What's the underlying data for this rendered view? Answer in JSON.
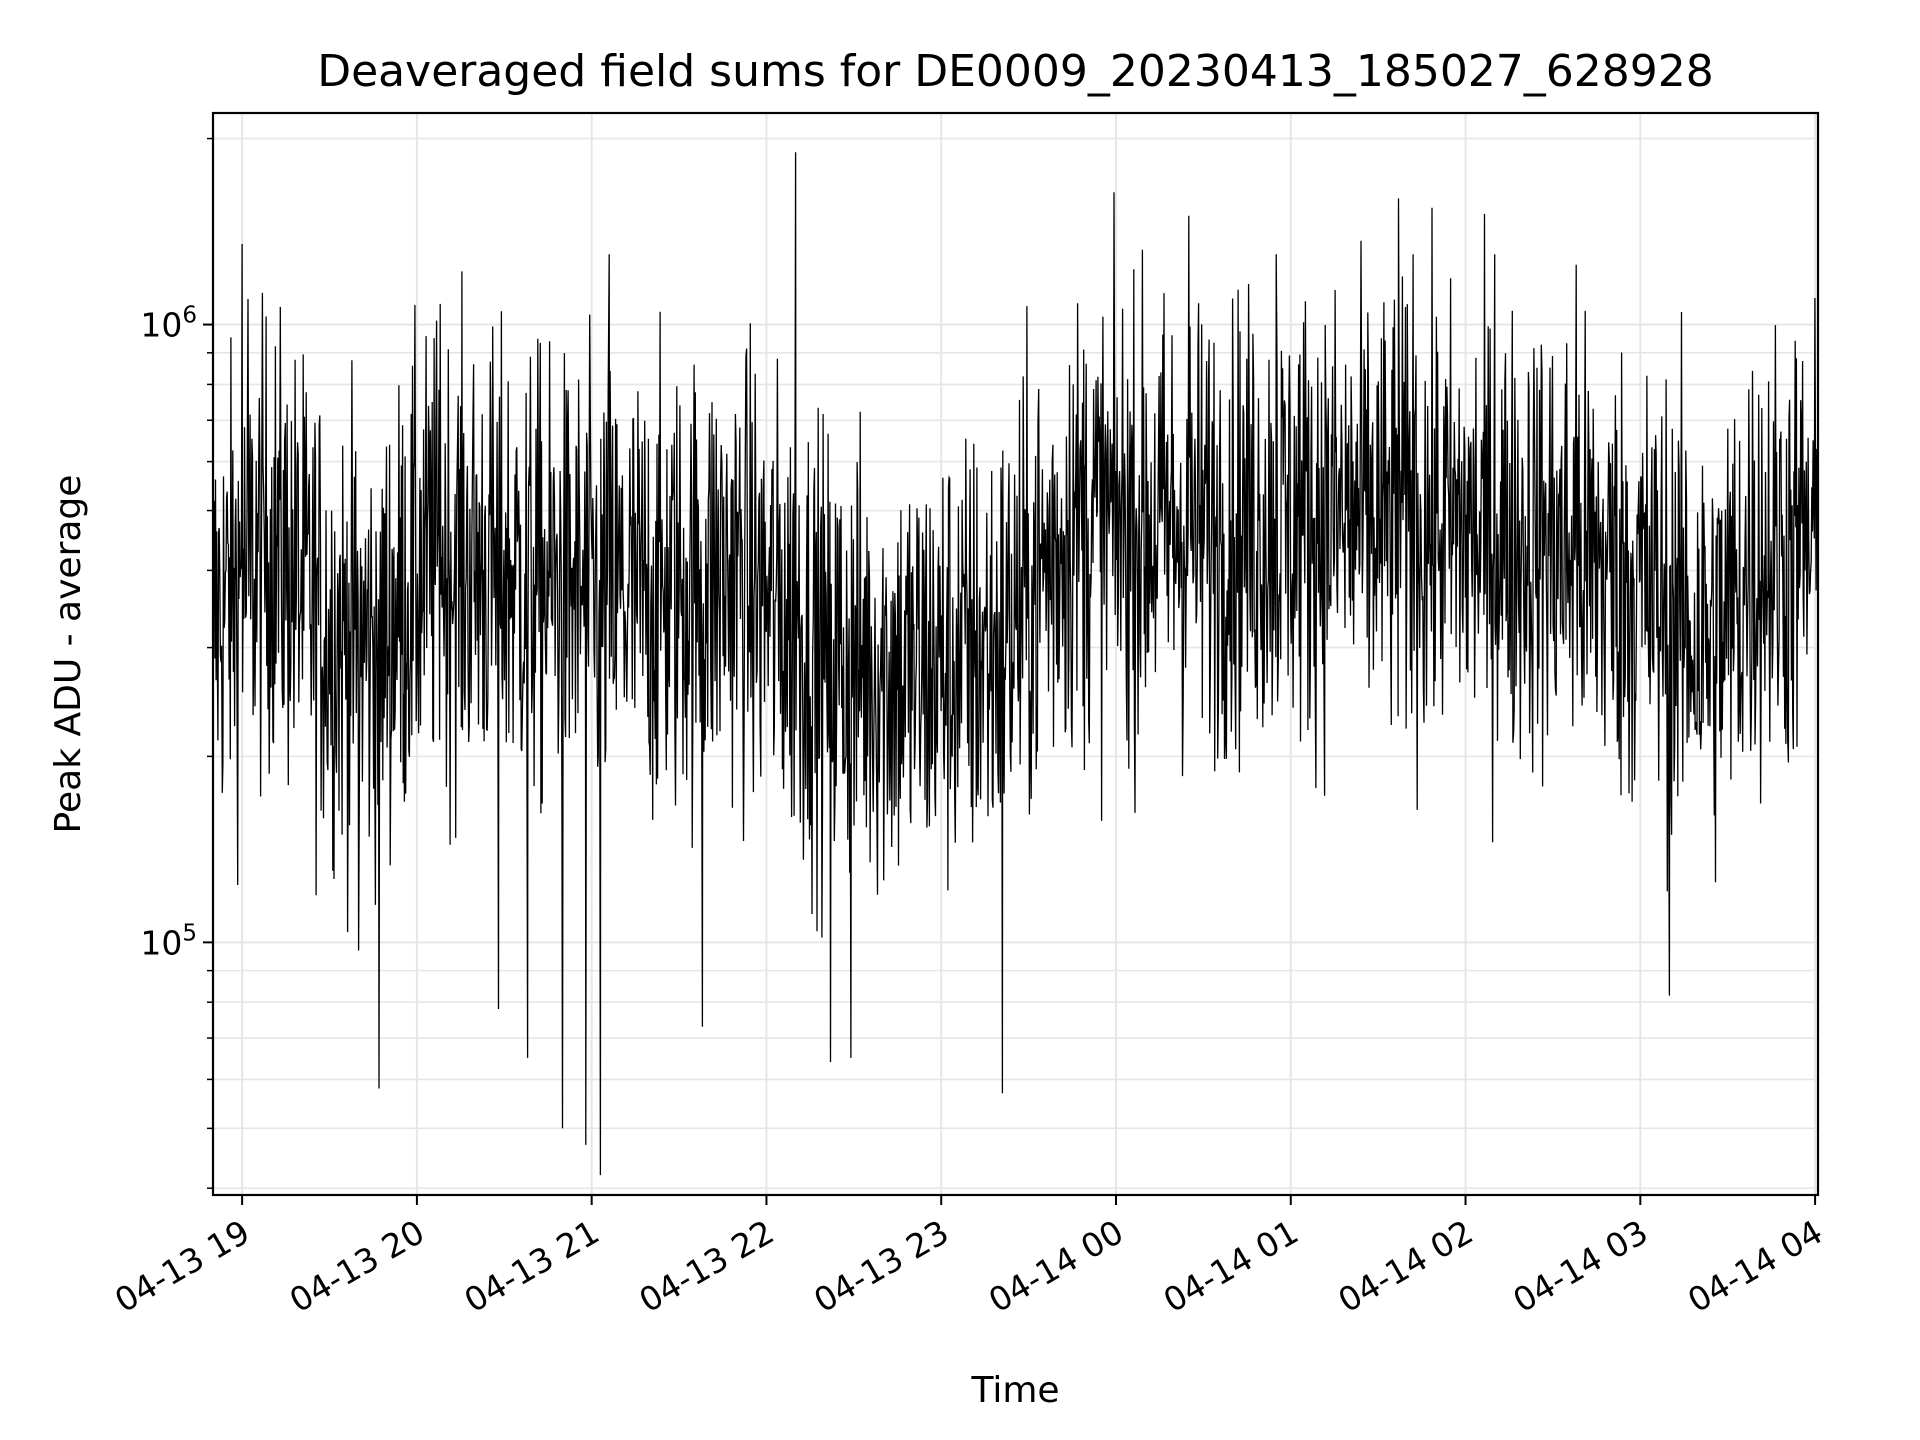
{
  "chart_data": {
    "type": "line",
    "title": "Deaveraged field sums for DE0009_20230413_185027_628928",
    "xlabel": "Time",
    "ylabel": "Peak ADU - average",
    "yscale": "log",
    "grid": true,
    "line_color": "#000000",
    "grid_color": "#e6e6e6",
    "xlim": [
      "2023-04-13 18:50",
      "2023-04-14 04:01"
    ],
    "ylim": [
      39000,
      2200000
    ],
    "x_ticks": [
      "04-13 19",
      "04-13 20",
      "04-13 21",
      "04-13 22",
      "04-13 23",
      "04-14 00",
      "04-14 01",
      "04-14 02",
      "04-14 03",
      "04-14 04"
    ],
    "y_ticks": [
      {
        "value": 100000,
        "base": "10",
        "exp": "5"
      },
      {
        "value": 1000000,
        "base": "10",
        "exp": "6"
      }
    ],
    "series": [
      {
        "baseline": [
          {
            "t": "2023-04-13 18:50",
            "y": 330000
          },
          {
            "t": "2023-04-13 19:10",
            "y": 450000
          },
          {
            "t": "2023-04-13 19:30",
            "y": 320000
          },
          {
            "t": "2023-04-13 19:45",
            "y": 300000
          },
          {
            "t": "2023-04-13 20:05",
            "y": 420000
          },
          {
            "t": "2023-04-13 20:30",
            "y": 400000
          },
          {
            "t": "2023-04-13 20:50",
            "y": 370000
          },
          {
            "t": "2023-04-13 21:20",
            "y": 360000
          },
          {
            "t": "2023-04-13 21:50",
            "y": 400000
          },
          {
            "t": "2023-04-13 22:20",
            "y": 290000
          },
          {
            "t": "2023-04-13 22:50",
            "y": 270000
          },
          {
            "t": "2023-04-13 23:20",
            "y": 300000
          },
          {
            "t": "2023-04-13 23:45",
            "y": 480000
          },
          {
            "t": "2023-04-14 00:30",
            "y": 470000
          },
          {
            "t": "2023-04-14 01:10",
            "y": 490000
          },
          {
            "t": "2023-04-14 01:50",
            "y": 470000
          },
          {
            "t": "2023-04-14 02:30",
            "y": 440000
          },
          {
            "t": "2023-04-14 03:00",
            "y": 380000
          },
          {
            "t": "2023-04-14 03:25",
            "y": 300000
          },
          {
            "t": "2023-04-14 03:40",
            "y": 420000
          },
          {
            "t": "2023-04-14 04:01",
            "y": 440000
          }
        ],
        "spikes": [
          {
            "t": "2023-04-13 19:00",
            "y": 1350000
          },
          {
            "t": "2023-04-13 19:02",
            "y": 1100000
          },
          {
            "t": "2023-04-13 19:40",
            "y": 97000
          },
          {
            "t": "2023-04-13 19:47",
            "y": 58000
          },
          {
            "t": "2023-04-13 20:08",
            "y": 1080000
          },
          {
            "t": "2023-04-13 20:28",
            "y": 78000
          },
          {
            "t": "2023-04-13 20:38",
            "y": 65000
          },
          {
            "t": "2023-04-13 20:50",
            "y": 50000
          },
          {
            "t": "2023-04-13 20:58",
            "y": 47000
          },
          {
            "t": "2023-04-13 21:03",
            "y": 42000
          },
          {
            "t": "2023-04-13 21:06",
            "y": 1300000
          },
          {
            "t": "2023-04-13 21:38",
            "y": 73000
          },
          {
            "t": "2023-04-13 22:10",
            "y": 1900000
          },
          {
            "t": "2023-04-13 22:22",
            "y": 64000
          },
          {
            "t": "2023-04-13 22:29",
            "y": 65000
          },
          {
            "t": "2023-04-13 23:21",
            "y": 57000
          },
          {
            "t": "2023-04-14 00:25",
            "y": 1500000
          },
          {
            "t": "2023-04-14 00:55",
            "y": 1300000
          },
          {
            "t": "2023-04-14 01:37",
            "y": 1600000
          },
          {
            "t": "2023-04-14 01:42",
            "y": 1300000
          },
          {
            "t": "2023-04-14 02:10",
            "y": 1300000
          },
          {
            "t": "2023-04-14 02:38",
            "y": 1250000
          },
          {
            "t": "2023-04-14 03:10",
            "y": 82000
          }
        ]
      }
    ]
  }
}
